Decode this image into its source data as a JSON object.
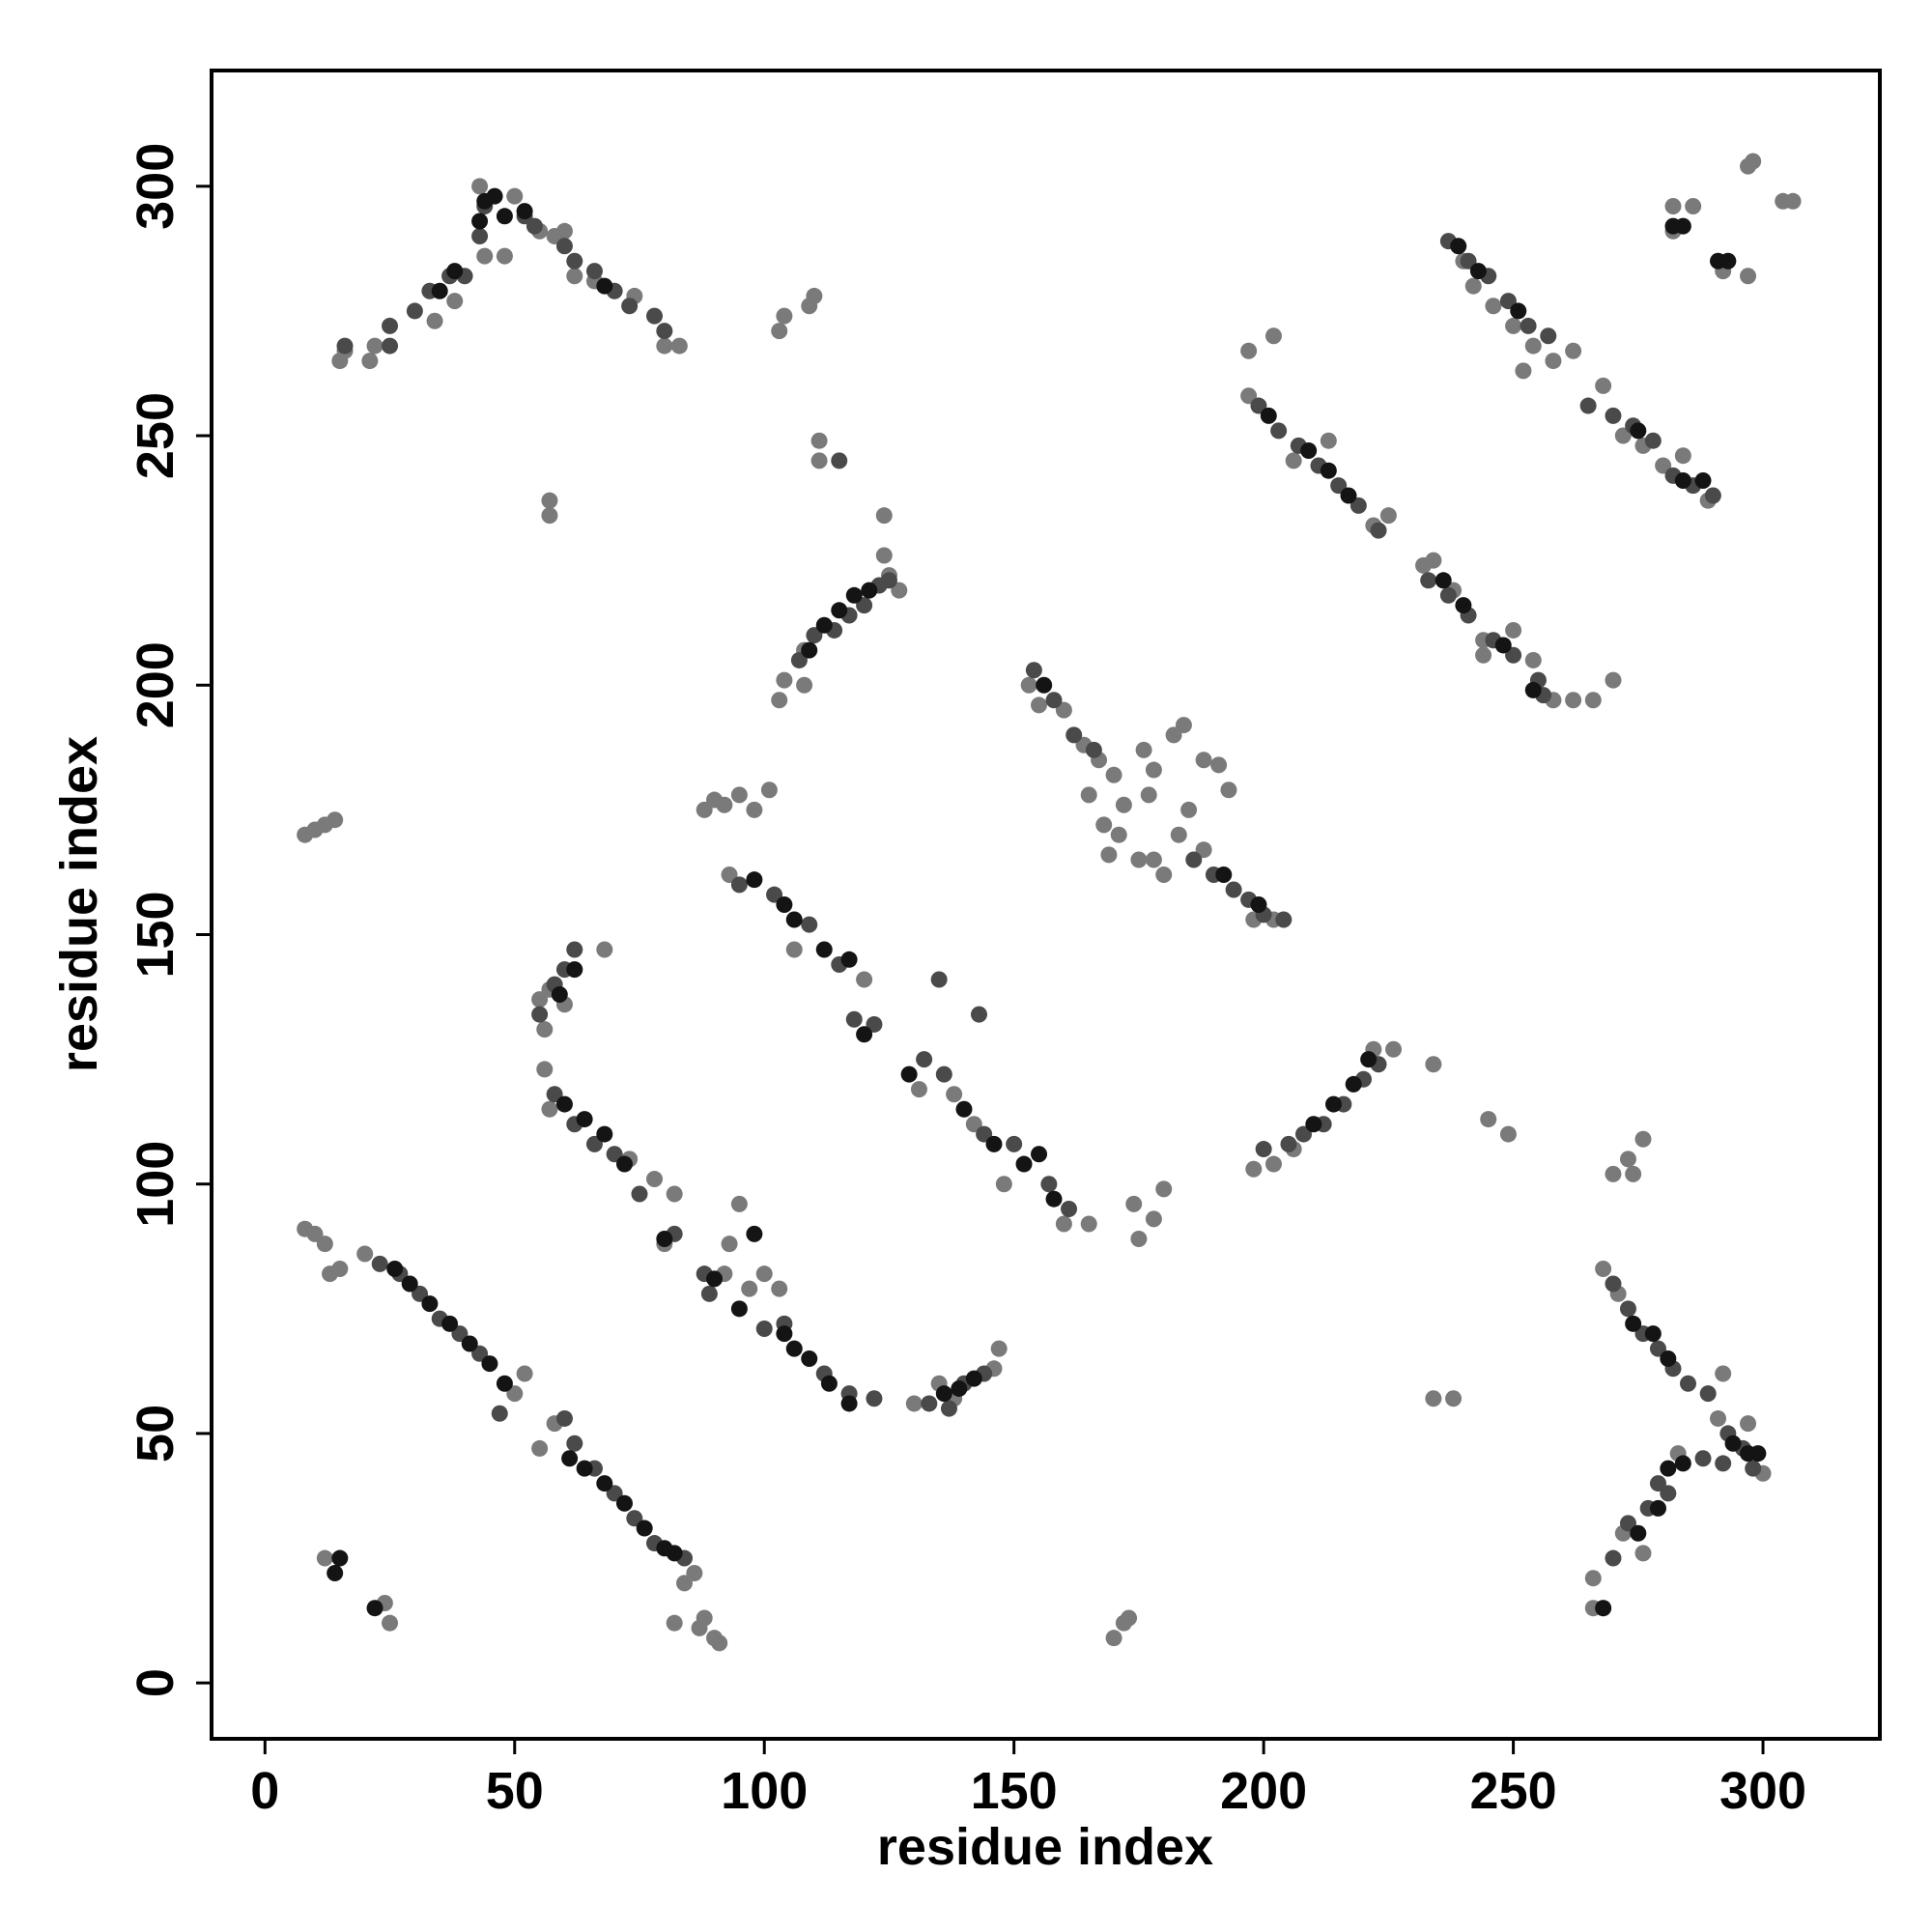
{
  "chart_data": {
    "type": "scatter",
    "x_label": "residue index",
    "y_label": "residue index",
    "xlim": [
      -10.7,
      323.4
    ],
    "ylim": [
      -11.2,
      323.2
    ],
    "xticks": [
      0,
      50,
      100,
      150,
      200,
      250,
      300
    ],
    "yticks": [
      0,
      50,
      100,
      150,
      200,
      250,
      300
    ],
    "series": [
      {
        "color": "#7a7a7a",
        "x": [
          8,
          10,
          12,
          13,
          15,
          20,
          52,
          50,
          55,
          58,
          84,
          86,
          87,
          88,
          90,
          91,
          82,
          56,
          57,
          73,
          78,
          82,
          80,
          92,
          97,
          103,
          100,
          95,
          93,
          93,
          92,
          88,
          90,
          95,
          98,
          101,
          106,
          120,
          131,
          138,
          148,
          160,
          165,
          142,
          153,
          155,
          160,
          164,
          167,
          170,
          165,
          168,
          171,
          172,
          169,
          175,
          178,
          180,
          178,
          176,
          182,
          184,
          188,
          191,
          193,
          177,
          185,
          183,
          188,
          198,
          202,
          174,
          175,
          178,
          180,
          170,
          172,
          173,
          197,
          197,
          202,
          206,
          213,
          222,
          225,
          232,
          234,
          238,
          244,
          250,
          254,
          258,
          262,
          266,
          270,
          244,
          240,
          242,
          246,
          250,
          254,
          258,
          262,
          268,
          272,
          276,
          280,
          284,
          289,
          252,
          282,
          286,
          282,
          292,
          297,
          297,
          298,
          304,
          306,
          15,
          16,
          21,
          22,
          34,
          38,
          43,
          44,
          48,
          50,
          55,
          58,
          60,
          62,
          66,
          74,
          80,
          83,
          103,
          104,
          109,
          110,
          57,
          57,
          111,
          111,
          124,
          103,
          104,
          108,
          108,
          124,
          125,
          127,
          198,
          202,
          206,
          222,
          226,
          234,
          245,
          249,
          234,
          238,
          270,
          273,
          276,
          274,
          55,
          56,
          57,
          60,
          68,
          8,
          10,
          12,
          14,
          12,
          24,
          25,
          268,
          271,
          266,
          266,
          268,
          283,
          292,
          291,
          297,
          300,
          272,
          276,
          130,
          135,
          138,
          147,
          146
        ],
        "values": [
          91,
          90,
          88,
          82,
          83,
          86,
          62,
          58,
          47,
          52,
          20,
          22,
          11,
          13,
          9,
          8,
          12,
          123,
          115,
          105,
          101,
          98,
          88,
          82,
          79,
          79,
          82,
          96,
          88,
          162,
          176,
          175,
          177,
          178,
          175,
          179,
          147,
          141,
          119,
          118,
          100,
          92,
          92,
          112,
          200,
          196,
          195,
          188,
          185,
          182,
          178,
          172,
          170,
          176,
          166,
          165,
          165,
          162,
          183,
          187,
          190,
          192,
          185,
          184,
          179,
          178,
          175,
          170,
          167,
          153,
          153,
          96,
          89,
          93,
          99,
          9,
          12,
          13,
          258,
          267,
          270,
          245,
          249,
          232,
          234,
          224,
          225,
          219,
          209,
          211,
          205,
          197,
          197,
          197,
          201,
          206,
          285,
          280,
          276,
          272,
          268,
          265,
          267,
          260,
          250,
          248,
          244,
          246,
          237,
          263,
          296,
          296,
          291,
          283,
          282,
          304,
          305,
          297,
          297,
          265,
          267,
          265,
          268,
          273,
          277,
          300,
          286,
          286,
          298,
          291,
          290,
          291,
          282,
          281,
          278,
          268,
          268,
          271,
          274,
          276,
          278,
          237,
          234,
          249,
          245,
          234,
          197,
          201,
          200,
          207,
          226,
          222,
          219,
          103,
          104,
          107,
          127,
          127,
          124,
          113,
          110,
          57,
          57,
          102,
          105,
          109,
          102,
          137,
          131,
          139,
          136,
          147,
          170,
          171,
          172,
          173,
          25,
          16,
          12,
          83,
          78,
          21,
          15,
          15,
          46,
          62,
          53,
          52,
          42,
          30,
          26,
          56,
          60,
          57,
          67,
          63
        ]
      },
      {
        "color": "#4a4a4a",
        "x": [
          23,
          27,
          31,
          35,
          39,
          43,
          47,
          60,
          62,
          66,
          70,
          74,
          78,
          84,
          58,
          62,
          66,
          70,
          75,
          82,
          88,
          89,
          100,
          104,
          112,
          117,
          122,
          95,
          102,
          109,
          115,
          118,
          122,
          132,
          136,
          144,
          150,
          157,
          161,
          135,
          143,
          154,
          158,
          162,
          166,
          186,
          190,
          194,
          197,
          200,
          204,
          199,
          203,
          207,
          211,
          215,
          219,
          223,
          233,
          237,
          241,
          246,
          250,
          255,
          256,
          237,
          241,
          245,
          249,
          253,
          257,
          265,
          270,
          274,
          278,
          282,
          286,
          290,
          16,
          25,
          25,
          30,
          33,
          37,
          40,
          43,
          44,
          52,
          54,
          60,
          62,
          66,
          70,
          73,
          78,
          80,
          115,
          107,
          110,
          114,
          117,
          120,
          123,
          125,
          200,
          205,
          208,
          212,
          216,
          220,
          223,
          55,
          58,
          60,
          62,
          270,
          273,
          276,
          279,
          282,
          285,
          289,
          293,
          296,
          298,
          270,
          273,
          277,
          279,
          281,
          288,
          292,
          133,
          137,
          140,
          144
        ],
        "values": [
          84,
          82,
          78,
          73,
          70,
          66,
          54,
          53,
          48,
          43,
          38,
          33,
          28,
          25,
          118,
          112,
          108,
          106,
          98,
          90,
          82,
          78,
          71,
          72,
          62,
          58,
          57,
          160,
          158,
          152,
          144,
          133,
          132,
          125,
          122,
          110,
          108,
          100,
          95,
          141,
          134,
          203,
          197,
          190,
          187,
          165,
          162,
          159,
          157,
          154,
          153,
          256,
          251,
          248,
          244,
          240,
          236,
          231,
          221,
          218,
          214,
          209,
          206,
          201,
          198,
          289,
          285,
          282,
          277,
          272,
          270,
          256,
          254,
          252,
          249,
          242,
          240,
          238,
          268,
          268,
          272,
          275,
          279,
          282,
          282,
          290,
          296,
          294,
          292,
          288,
          285,
          283,
          279,
          276,
          274,
          271,
          245,
          205,
          210,
          211,
          214,
          216,
          220,
          221,
          107,
          108,
          110,
          112,
          116,
          121,
          124,
          134,
          140,
          143,
          147,
          80,
          75,
          70,
          67,
          63,
          60,
          58,
          50,
          47,
          43,
          25,
          32,
          35,
          40,
          38,
          45,
          44,
          56,
          55,
          60,
          62
        ]
      },
      {
        "color": "#141414",
        "x": [
          26,
          29,
          33,
          37,
          41,
          45,
          48,
          61,
          64,
          68,
          72,
          76,
          80,
          82,
          60,
          64,
          68,
          72,
          80,
          90,
          98,
          95,
          104,
          106,
          109,
          113,
          117,
          98,
          104,
          106,
          112,
          117,
          120,
          129,
          140,
          146,
          152,
          155,
          158,
          156,
          192,
          199,
          201,
          209,
          213,
          217,
          236,
          240,
          248,
          254,
          239,
          243,
          251,
          275,
          284,
          288,
          282,
          284,
          291,
          293,
          35,
          38,
          43,
          44,
          46,
          48,
          52,
          68,
          109,
          112,
          115,
          118,
          121,
          210,
          214,
          218,
          221,
          59,
          62,
          14,
          15,
          22,
          274,
          278,
          281,
          294,
          297,
          299,
          268,
          275,
          279,
          281,
          284,
          136,
          139,
          142
        ],
        "values": [
          83,
          80,
          76,
          72,
          68,
          64,
          60,
          45,
          43,
          40,
          36,
          31,
          27,
          26,
          116,
          113,
          110,
          104,
          89,
          81,
          90,
          75,
          70,
          67,
          65,
          60,
          56,
          161,
          156,
          153,
          147,
          145,
          130,
          122,
          115,
          108,
          104,
          106,
          97,
          200,
          162,
          156,
          254,
          247,
          243,
          238,
          221,
          216,
          208,
          199,
          288,
          283,
          275,
          251,
          241,
          241,
          292,
          292,
          285,
          285,
          279,
          283,
          293,
          297,
          298,
          294,
          295,
          280,
          207,
          212,
          215,
          218,
          219,
          112,
          116,
          120,
          125,
          138,
          143,
          22,
          25,
          15,
          72,
          70,
          65,
          48,
          46,
          46,
          15,
          30,
          35,
          43,
          44,
          58,
          59,
          61
        ]
      }
    ]
  }
}
